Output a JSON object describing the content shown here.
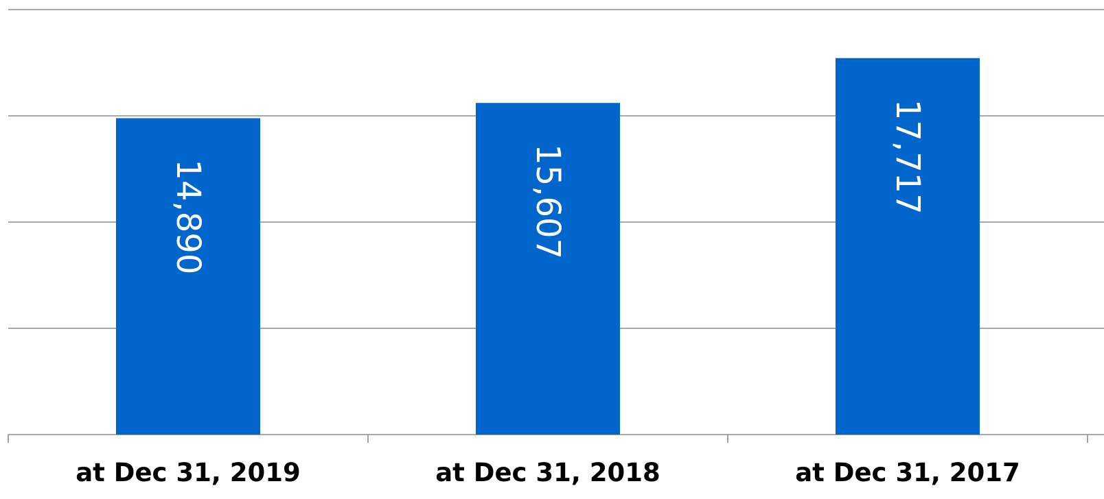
{
  "chart_data": {
    "type": "bar",
    "title": "",
    "xlabel": "",
    "ylabel": "",
    "categories": [
      "at Dec 31, 2019",
      "at Dec 31, 2018",
      "at Dec 31, 2017"
    ],
    "values": [
      14890,
      15607,
      17717
    ],
    "value_labels": [
      "14,890",
      "15,607",
      "17,717"
    ],
    "ylim": [
      0,
      20000
    ],
    "y_gridlines": [
      0,
      5000,
      10000,
      15000,
      20000
    ],
    "grid": true,
    "y_tick_labels_visible": false,
    "legend": "none",
    "data_label_orientation": "rotated-90-clockwise",
    "bar_color": "#0066cc"
  }
}
